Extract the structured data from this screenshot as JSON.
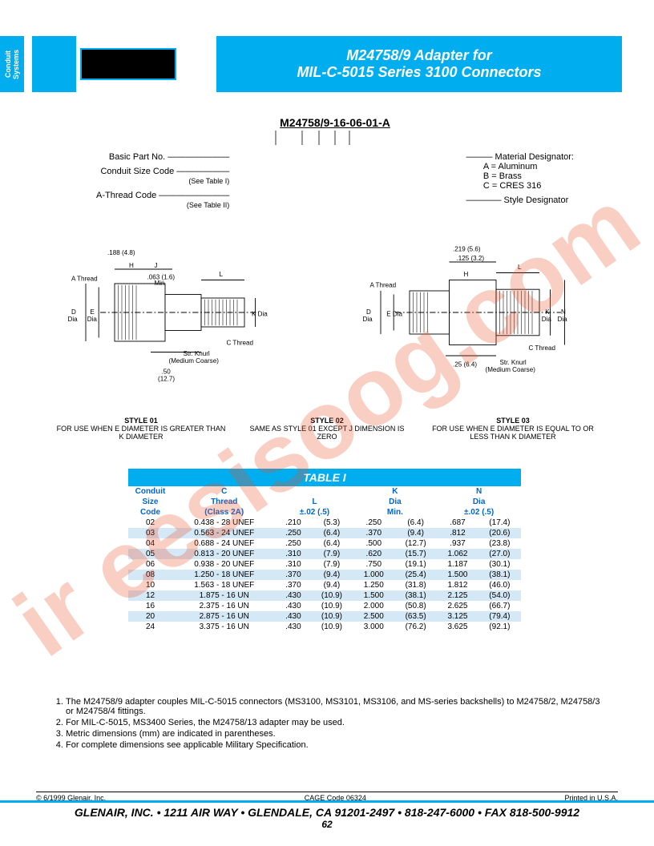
{
  "side_tab": "Conduit Systems",
  "header": {
    "line1": "M24758/9 Adapter for",
    "line2": "MIL-C-5015 Series 3100 Connectors"
  },
  "watermark": "ir eesisoog.com",
  "part_number": {
    "full": "M24758/9-16-06-01-A",
    "left": [
      "Basic Part No.",
      "Conduit Size Code\n(See Table I)",
      "A-Thread Code\n(See Table II)"
    ],
    "right": [
      "Material Designator:\nA = Aluminum\nB = Brass\nC = CRES 316",
      "Style Designator"
    ]
  },
  "diagram_labels": {
    "left": [
      ".188 (4.8)",
      "H",
      "J",
      ".063 (1.6) Min",
      "L",
      "A Thread",
      "D Dia",
      "E Dia",
      "K Dia",
      "C Thread",
      "Str. Knurl (Medium Coarse)",
      ".50 (12.7)"
    ],
    "right": [
      ".219 (5.6)",
      ".125 (3.2)",
      "L",
      "H",
      "A Thread",
      "D Dia",
      "E Dia",
      "K Dia",
      "N Dia",
      "C Thread",
      "Str. Knurl (Medium Coarse)",
      ".25 (6.4)"
    ]
  },
  "styles": [
    {
      "title": "STYLE 01",
      "desc": "FOR USE WHEN E DIAMETER IS GREATER THAN K DIAMETER"
    },
    {
      "title": "STYLE 02",
      "desc": "SAME AS STYLE 01 EXCEPT J DIMENSION IS ZERO"
    },
    {
      "title": "STYLE 03",
      "desc": "FOR USE WHEN E DIAMETER IS EQUAL TO OR LESS THAN K DIAMETER"
    }
  ],
  "table": {
    "title": "TABLE I",
    "head1": [
      "Conduit",
      "C",
      "",
      "K",
      "N"
    ],
    "head2": [
      "Size",
      "Thread",
      "L",
      "Dia",
      "Dia"
    ],
    "head3": [
      "Code",
      "(Class 2A)",
      "±.02   (.5)",
      "Min.",
      "±.02   (.5)"
    ],
    "rows": [
      [
        "02",
        "0.438 - 28 UNEF",
        ".210",
        "(5.3)",
        ".250",
        "(6.4)",
        ".687",
        "(17.4)"
      ],
      [
        "03",
        "0.563 - 24 UNEF",
        ".250",
        "(6.4)",
        ".370",
        "(9.4)",
        ".812",
        "(20.6)"
      ],
      [
        "04",
        "0.688 - 24 UNEF",
        ".250",
        "(6.4)",
        ".500",
        "(12.7)",
        ".937",
        "(23.8)"
      ],
      [
        "05",
        "0.813 - 20 UNEF",
        ".310",
        "(7.9)",
        ".620",
        "(15.7)",
        "1.062",
        "(27.0)"
      ],
      [
        "06",
        "0.938 - 20 UNEF",
        ".310",
        "(7.9)",
        ".750",
        "(19.1)",
        "1.187",
        "(30.1)"
      ],
      [
        "08",
        "1.250 - 18 UNEF",
        ".370",
        "(9.4)",
        "1.000",
        "(25.4)",
        "1.500",
        "(38.1)"
      ],
      [
        "10",
        "1.563 - 18 UNEF",
        ".370",
        "(9.4)",
        "1.250",
        "(31.8)",
        "1.812",
        "(46.0)"
      ],
      [
        "12",
        "1.875 - 16 UN",
        ".430",
        "(10.9)",
        "1.500",
        "(38.1)",
        "2.125",
        "(54.0)"
      ],
      [
        "16",
        "2.375 - 16 UN",
        ".430",
        "(10.9)",
        "2.000",
        "(50.8)",
        "2.625",
        "(66.7)"
      ],
      [
        "20",
        "2.875 - 16 UN",
        ".430",
        "(10.9)",
        "2.500",
        "(63.5)",
        "3.125",
        "(79.4)"
      ],
      [
        "24",
        "3.375 - 16 UN",
        ".430",
        "(10.9)",
        "3.000",
        "(76.2)",
        "3.625",
        "(92.1)"
      ]
    ]
  },
  "notes": [
    "The M24758/9 adapter couples MIL-C-5015 connectors (MS3100, MS3101, MS3106, and MS-series backshells) to M24758/2, M24758/3 or M24758/4 fittings.",
    "For MIL-C-5015, MS3400 Series, the M24758/13 adapter may be used.",
    "Metric dimensions (mm) are indicated in parentheses.",
    "For complete dimensions see applicable Military Specification."
  ],
  "footer1": {
    "left": "© 6/1999 Glenair, Inc.",
    "center": "CAGE Code 06324",
    "right": "Printed in U.S.A."
  },
  "footer2": "GLENAIR, INC. • 1211 AIR WAY • GLENDALE, CA 91201-2497 • 818-247-6000 • FAX 818-500-9912",
  "pagenum": "62"
}
